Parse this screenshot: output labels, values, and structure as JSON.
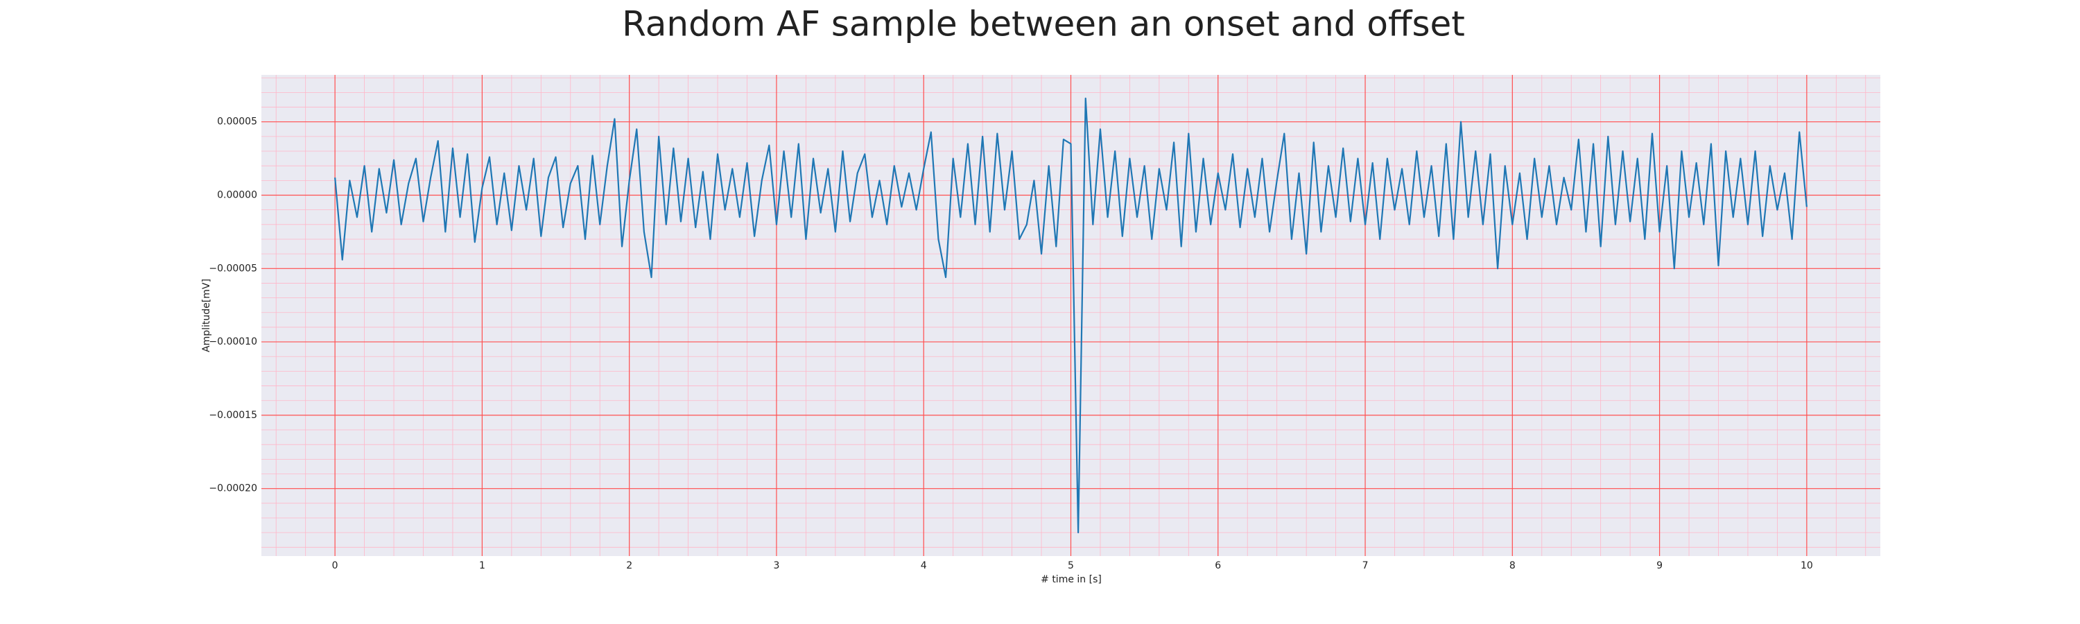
{
  "chart_data": {
    "type": "line",
    "title": "Random AF sample between an onset and offset",
    "x_label": "# time in [s]",
    "y_label": "Amplitude[mV]",
    "x": [
      0,
      0.05,
      0.1,
      0.15,
      0.2,
      0.25,
      0.3,
      0.35,
      0.4,
      0.45,
      0.5,
      0.55,
      0.6,
      0.65,
      0.7,
      0.75,
      0.8,
      0.85,
      0.9,
      0.95,
      1,
      1.05,
      1.1,
      1.15,
      1.2,
      1.25,
      1.3,
      1.35,
      1.4,
      1.45,
      1.5,
      1.55,
      1.6,
      1.65,
      1.7,
      1.75,
      1.8,
      1.85,
      1.9,
      1.95,
      2,
      2.05,
      2.1,
      2.15,
      2.2,
      2.25,
      2.3,
      2.35,
      2.4,
      2.45,
      2.5,
      2.55,
      2.6,
      2.65,
      2.7,
      2.75,
      2.8,
      2.85,
      2.9,
      2.95,
      3,
      3.05,
      3.1,
      3.15,
      3.2,
      3.25,
      3.3,
      3.35,
      3.4,
      3.45,
      3.5,
      3.55,
      3.6,
      3.65,
      3.7,
      3.75,
      3.8,
      3.85,
      3.9,
      3.95,
      4,
      4.05,
      4.1,
      4.15,
      4.2,
      4.25,
      4.3,
      4.35,
      4.4,
      4.45,
      4.5,
      4.55,
      4.6,
      4.65,
      4.7,
      4.75,
      4.8,
      4.85,
      4.9,
      4.95,
      5,
      5.05,
      5.1,
      5.15,
      5.2,
      5.25,
      5.3,
      5.35,
      5.4,
      5.45,
      5.5,
      5.55,
      5.6,
      5.65,
      5.7,
      5.75,
      5.8,
      5.85,
      5.9,
      5.95,
      6,
      6.05,
      6.1,
      6.15,
      6.2,
      6.25,
      6.3,
      6.35,
      6.4,
      6.45,
      6.5,
      6.55,
      6.6,
      6.65,
      6.7,
      6.75,
      6.8,
      6.85,
      6.9,
      6.95,
      7,
      7.05,
      7.1,
      7.15,
      7.2,
      7.25,
      7.3,
      7.35,
      7.4,
      7.45,
      7.5,
      7.55,
      7.6,
      7.65,
      7.7,
      7.75,
      7.8,
      7.85,
      7.9,
      7.95,
      8,
      8.05,
      8.1,
      8.15,
      8.2,
      8.25,
      8.3,
      8.35,
      8.4,
      8.45,
      8.5,
      8.55,
      8.6,
      8.65,
      8.7,
      8.75,
      8.8,
      8.85,
      8.9,
      8.95,
      9,
      9.05,
      9.1,
      9.15,
      9.2,
      9.25,
      9.3,
      9.35,
      9.4,
      9.45,
      9.5,
      9.55,
      9.6,
      9.65,
      9.7,
      9.75,
      9.8,
      9.85,
      9.9,
      9.95,
      10
    ],
    "series": [
      {
        "color": "#1f77b4",
        "values": [
          1.2e-05,
          -4.4e-05,
          1e-05,
          -1.5e-05,
          2e-05,
          -2.5e-05,
          1.8e-05,
          -1.2e-05,
          2.4e-05,
          -2e-05,
          8e-06,
          2.5e-05,
          -1.8e-05,
          1.2e-05,
          3.7e-05,
          -2.5e-05,
          3.2e-05,
          -1.5e-05,
          2.8e-05,
          -3.2e-05,
          5e-06,
          2.6e-05,
          -2e-05,
          1.5e-05,
          -2.4e-05,
          2e-05,
          -1e-05,
          2.5e-05,
          -2.8e-05,
          1.2e-05,
          2.6e-05,
          -2.2e-05,
          8e-06,
          2e-05,
          -3e-05,
          2.7e-05,
          -2e-05,
          2e-05,
          5.2e-05,
          -3.5e-05,
          1e-05,
          4.5e-05,
          -2.5e-05,
          -5.6e-05,
          4e-05,
          -2e-05,
          3.2e-05,
          -1.8e-05,
          2.5e-05,
          -2.2e-05,
          1.6e-05,
          -3e-05,
          2.8e-05,
          -1e-05,
          1.8e-05,
          -1.5e-05,
          2.2e-05,
          -2.8e-05,
          1e-05,
          3.4e-05,
          -2e-05,
          3e-05,
          -1.5e-05,
          3.5e-05,
          -3e-05,
          2.5e-05,
          -1.2e-05,
          1.8e-05,
          -2.5e-05,
          3e-05,
          -1.8e-05,
          1.5e-05,
          2.8e-05,
          -1.5e-05,
          1e-05,
          -2e-05,
          2e-05,
          -8e-06,
          1.5e-05,
          -1e-05,
          1.8e-05,
          4.3e-05,
          -3e-05,
          -5.6e-05,
          2.5e-05,
          -1.5e-05,
          3.5e-05,
          -2e-05,
          4e-05,
          -2.5e-05,
          4.2e-05,
          -1e-05,
          3e-05,
          -3e-05,
          -2e-05,
          1e-05,
          -4e-05,
          2e-05,
          -3.5e-05,
          3.8e-05,
          3.5e-05,
          -0.00023,
          6.6e-05,
          -2e-05,
          4.5e-05,
          -1.5e-05,
          3e-05,
          -2.8e-05,
          2.5e-05,
          -1.5e-05,
          2e-05,
          -3e-05,
          1.8e-05,
          -1e-05,
          3.6e-05,
          -3.5e-05,
          4.2e-05,
          -2.5e-05,
          2.5e-05,
          -2e-05,
          1.5e-05,
          -1e-05,
          2.8e-05,
          -2.2e-05,
          1.8e-05,
          -1.5e-05,
          2.5e-05,
          -2.5e-05,
          1e-05,
          4.2e-05,
          -3e-05,
          1.5e-05,
          -4e-05,
          3.6e-05,
          -2.5e-05,
          2e-05,
          -1.5e-05,
          3.2e-05,
          -1.8e-05,
          2.5e-05,
          -2e-05,
          2.2e-05,
          -3e-05,
          2.5e-05,
          -1e-05,
          1.8e-05,
          -2e-05,
          3e-05,
          -1.5e-05,
          2e-05,
          -2.8e-05,
          3.5e-05,
          -3e-05,
          5e-05,
          -1.5e-05,
          3e-05,
          -2e-05,
          2.8e-05,
          -5e-05,
          2e-05,
          -2e-05,
          1.5e-05,
          -3e-05,
          2.5e-05,
          -1.5e-05,
          2e-05,
          -2e-05,
          1.2e-05,
          -1e-05,
          3.8e-05,
          -2.5e-05,
          3.5e-05,
          -3.5e-05,
          4e-05,
          -2e-05,
          3e-05,
          -1.8e-05,
          2.5e-05,
          -3e-05,
          4.2e-05,
          -2.5e-05,
          2e-05,
          -5e-05,
          3e-05,
          -1.5e-05,
          2.2e-05,
          -2e-05,
          3.5e-05,
          -4.8e-05,
          3e-05,
          -1.5e-05,
          2.5e-05,
          -2e-05,
          3e-05,
          -2.8e-05,
          2e-05,
          -1e-05,
          1.5e-05,
          -3e-05,
          4.3e-05,
          -8e-06
        ]
      }
    ],
    "xlim": [
      -0.5,
      10.5
    ],
    "xticks": [
      0,
      1,
      2,
      3,
      4,
      5,
      6,
      7,
      8,
      9,
      10
    ],
    "ylim": [
      -0.000246,
      8.2e-05
    ],
    "yticks": [
      {
        "value": -0.0002,
        "label": "−0.00020"
      },
      {
        "value": -0.00015,
        "label": "−0.00015"
      },
      {
        "value": -0.0001,
        "label": "−0.00010"
      },
      {
        "value": -5e-05,
        "label": "−0.00005"
      },
      {
        "value": 0,
        "label": "0.00000"
      },
      {
        "value": 5e-05,
        "label": "0.00005"
      }
    ],
    "grid": true,
    "minor_grid": true
  }
}
